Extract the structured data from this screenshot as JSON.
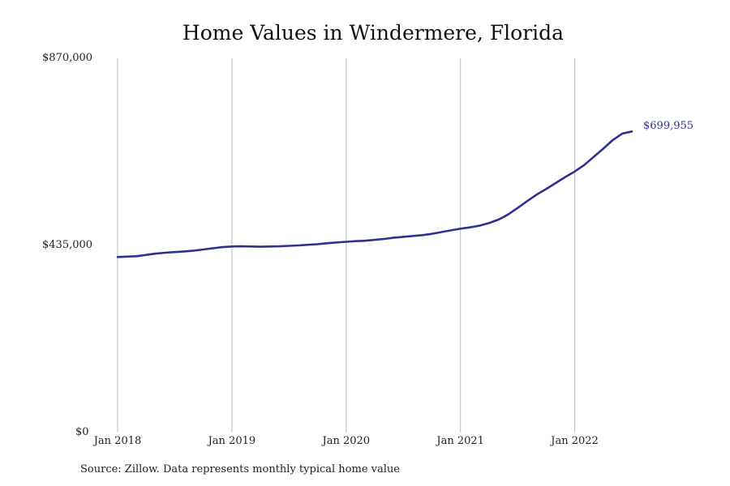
{
  "chart_data": {
    "type": "line",
    "title": "Home Values in Windermere, Florida",
    "y_ticks": [
      "$870,000",
      "$435,000",
      "$0"
    ],
    "y_tick_values": [
      870000,
      435000,
      0
    ],
    "ylim": [
      0,
      870000
    ],
    "x_ticks": [
      "Jan 2018",
      "Jan 2019",
      "Jan 2020",
      "Jan 2021",
      "Jan 2022"
    ],
    "x_tick_values": [
      "2018-01",
      "2019-01",
      "2020-01",
      "2021-01",
      "2022-01"
    ],
    "xlim": [
      "2018-01",
      "2022-07"
    ],
    "grid": "vertical",
    "line_color": "#2e3192",
    "end_label": "$699,955",
    "source": "Source: Zillow. Data represents monthly typical home value",
    "series": [
      {
        "x": [
          "2018-01",
          "2018-02",
          "2018-03",
          "2018-04",
          "2018-05",
          "2018-06",
          "2018-07",
          "2018-08",
          "2018-09",
          "2018-10",
          "2018-11",
          "2018-12",
          "2019-01",
          "2019-02",
          "2019-03",
          "2019-04",
          "2019-05",
          "2019-06",
          "2019-07",
          "2019-08",
          "2019-09",
          "2019-10",
          "2019-11",
          "2019-12",
          "2020-01",
          "2020-02",
          "2020-03",
          "2020-04",
          "2020-05",
          "2020-06",
          "2020-07",
          "2020-08",
          "2020-09",
          "2020-10",
          "2020-11",
          "2020-12",
          "2021-01",
          "2021-02",
          "2021-03",
          "2021-04",
          "2021-05",
          "2021-06",
          "2021-07",
          "2021-08",
          "2021-09",
          "2021-10",
          "2021-11",
          "2021-12",
          "2022-01",
          "2022-02",
          "2022-03",
          "2022-04",
          "2022-05",
          "2022-06",
          "2022-07"
        ],
        "values": [
          408000,
          409000,
          410000,
          413000,
          416000,
          418000,
          419500,
          421000,
          423000,
          425500,
          428500,
          431000,
          432500,
          433000,
          432500,
          432000,
          432500,
          433000,
          434000,
          435000,
          436500,
          438000,
          440000,
          442000,
          443500,
          445000,
          446000,
          448000,
          450000,
          453000,
          455000,
          457000,
          459000,
          462000,
          466000,
          470000,
          474000,
          477000,
          481000,
          487000,
          495000,
          507000,
          522000,
          538000,
          553000,
          566000,
          580000,
          594000,
          607000,
          622000,
          641000,
          660000,
          680000,
          695000,
          699955
        ]
      }
    ]
  }
}
